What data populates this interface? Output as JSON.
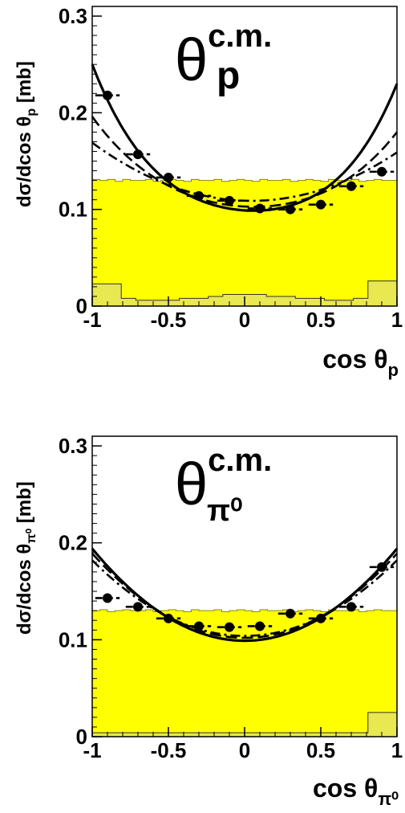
{
  "chart_data": [
    {
      "type": "scatter",
      "title_symbol": "θ",
      "title_superscript": "c.m.",
      "title_subscript": "p",
      "xlabel_prefix": "cos θ",
      "xlabel_subscript": "p",
      "ylabel_prefix": "dσ/dcos θ",
      "ylabel_subscript": "p",
      "ylabel_suffix": " [mb]",
      "xlim": [
        -1,
        1
      ],
      "ylim": [
        0,
        0.31
      ],
      "x_ticks": [
        -1,
        -0.5,
        0,
        0.5,
        1
      ],
      "x_tick_labels": [
        "-1",
        "-0.5",
        "0",
        "0.5",
        "1"
      ],
      "y_ticks": [
        0,
        0.1,
        0.2,
        0.3
      ],
      "y_tick_labels": [
        "0",
        "0.1",
        "0.2",
        "0.3"
      ],
      "grid": false,
      "colors": {
        "fill": "#ffff00",
        "line": "#000000"
      },
      "data_points": [
        {
          "x": -0.9,
          "y": 0.218
        },
        {
          "x": -0.7,
          "y": 0.157
        },
        {
          "x": -0.5,
          "y": 0.133
        },
        {
          "x": -0.3,
          "y": 0.114
        },
        {
          "x": -0.1,
          "y": 0.109
        },
        {
          "x": 0.1,
          "y": 0.101
        },
        {
          "x": 0.3,
          "y": 0.1
        },
        {
          "x": 0.5,
          "y": 0.105
        },
        {
          "x": 0.7,
          "y": 0.124
        },
        {
          "x": 0.9,
          "y": 0.139
        }
      ],
      "bin_half_width": 0.08,
      "acceptance_histogram": [
        0.131,
        0.13,
        0.131,
        0.129,
        0.131,
        0.13,
        0.13,
        0.131,
        0.129,
        0.13,
        0.131,
        0.13,
        0.129,
        0.131,
        0.13,
        0.13,
        0.131,
        0.129,
        0.13,
        0.131,
        0.13,
        0.129,
        0.131,
        0.13,
        0.13,
        0.131,
        0.129,
        0.13,
        0.131,
        0.13,
        0.129,
        0.131,
        0.13,
        0.13,
        0.131,
        0.129,
        0.13,
        0.131,
        0.13,
        0.13
      ],
      "background_histogram": [
        0.023,
        0.023,
        0.008,
        0.006,
        0.006,
        0.006,
        0.008,
        0.008,
        0.01,
        0.012,
        0.012,
        0.012,
        0.01,
        0.01,
        0.008,
        0.008,
        0.006,
        0.006,
        0.008,
        0.026,
        0.026
      ],
      "curves": [
        {
          "style": "solid",
          "coeffs": [
            0.099,
            -0.01,
            0.083,
            0.058,
            0.0
          ]
        },
        {
          "style": "dashed",
          "coeffs": [
            0.103,
            -0.008,
            0.065,
            0.02,
            0.0
          ]
        },
        {
          "style": "dashdot",
          "coeffs": [
            0.109,
            -0.005,
            0.055,
            0.0,
            0.0
          ]
        }
      ]
    },
    {
      "type": "scatter",
      "title_symbol": "θ",
      "title_superscript": "c.m.",
      "title_subscript": "π⁰",
      "xlabel_prefix": "cos θ",
      "xlabel_subscript": "π⁰",
      "ylabel_prefix": "dσ/dcos θ",
      "ylabel_subscript": "π⁰",
      "ylabel_suffix": " [mb]",
      "xlim": [
        -1,
        1
      ],
      "ylim": [
        0,
        0.31
      ],
      "x_ticks": [
        -1,
        -0.5,
        0,
        0.5,
        1
      ],
      "x_tick_labels": [
        "-1",
        "-0.5",
        "0",
        "0.5",
        "1"
      ],
      "y_ticks": [
        0,
        0.1,
        0.2,
        0.3
      ],
      "y_tick_labels": [
        "0",
        "0.1",
        "0.2",
        "0.3"
      ],
      "grid": false,
      "colors": {
        "fill": "#ffff00",
        "line": "#000000"
      },
      "data_points": [
        {
          "x": -0.9,
          "y": 0.143
        },
        {
          "x": -0.7,
          "y": 0.134
        },
        {
          "x": -0.5,
          "y": 0.122
        },
        {
          "x": -0.3,
          "y": 0.114
        },
        {
          "x": -0.1,
          "y": 0.113
        },
        {
          "x": 0.1,
          "y": 0.114
        },
        {
          "x": 0.3,
          "y": 0.127
        },
        {
          "x": 0.5,
          "y": 0.122
        },
        {
          "x": 0.7,
          "y": 0.134
        },
        {
          "x": 0.9,
          "y": 0.175
        }
      ],
      "bin_half_width": 0.08,
      "acceptance_histogram": [
        0.13,
        0.131,
        0.129,
        0.13,
        0.131,
        0.13,
        0.13,
        0.131,
        0.129,
        0.13,
        0.131,
        0.13,
        0.129,
        0.131,
        0.13,
        0.13,
        0.131,
        0.129,
        0.13,
        0.131,
        0.13,
        0.129,
        0.131,
        0.13,
        0.13,
        0.131,
        0.129,
        0.13,
        0.131,
        0.13,
        0.129,
        0.131,
        0.13,
        0.13,
        0.131,
        0.129,
        0.13,
        0.131,
        0.13,
        0.13
      ],
      "background_histogram": [
        0.004,
        0.004,
        0.004,
        0.004,
        0.004,
        0.004,
        0.004,
        0.004,
        0.004,
        0.004,
        0.004,
        0.004,
        0.004,
        0.004,
        0.004,
        0.004,
        0.004,
        0.004,
        0.004,
        0.025,
        0.025
      ],
      "curves": [
        {
          "style": "solid",
          "coeffs": [
            0.099,
            0.0,
            0.095,
            0.0,
            0.0
          ]
        },
        {
          "style": "dashed",
          "coeffs": [
            0.102,
            0.0,
            0.087,
            0.0,
            0.0
          ]
        },
        {
          "style": "dashdot",
          "coeffs": [
            0.104,
            0.0,
            0.078,
            0.0,
            0.0
          ]
        }
      ]
    }
  ]
}
